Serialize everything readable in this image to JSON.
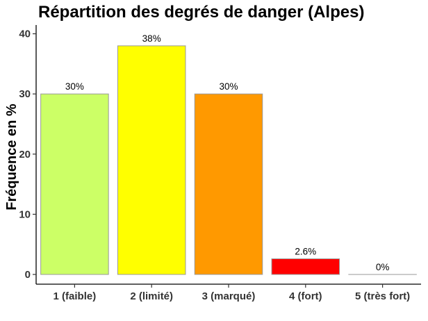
{
  "chart_data": {
    "type": "bar",
    "title": "Répartition des degrés de danger (Alpes)",
    "xlabel": "",
    "ylabel": "Fréquence en %",
    "categories": [
      "1 (faible)",
      "2 (limité)",
      "3 (marqué)",
      "4 (fort)",
      "5 (très fort)"
    ],
    "values": [
      30,
      38,
      30,
      2.6,
      0
    ],
    "data_labels": [
      "30%",
      "38%",
      "30%",
      "2.6%",
      "0%"
    ],
    "bar_colors": [
      "#CCFF66",
      "#FFFF00",
      "#FF9900",
      "#FF0000",
      "#FFFFFF"
    ],
    "bar_outline_color": "#999999",
    "ylim": [
      0,
      41.9
    ],
    "yticks": [
      0,
      10,
      20,
      30,
      40
    ],
    "ytick_labels": [
      "0",
      "10",
      "20",
      "30",
      "40"
    ],
    "grid": false,
    "legend": "none"
  }
}
